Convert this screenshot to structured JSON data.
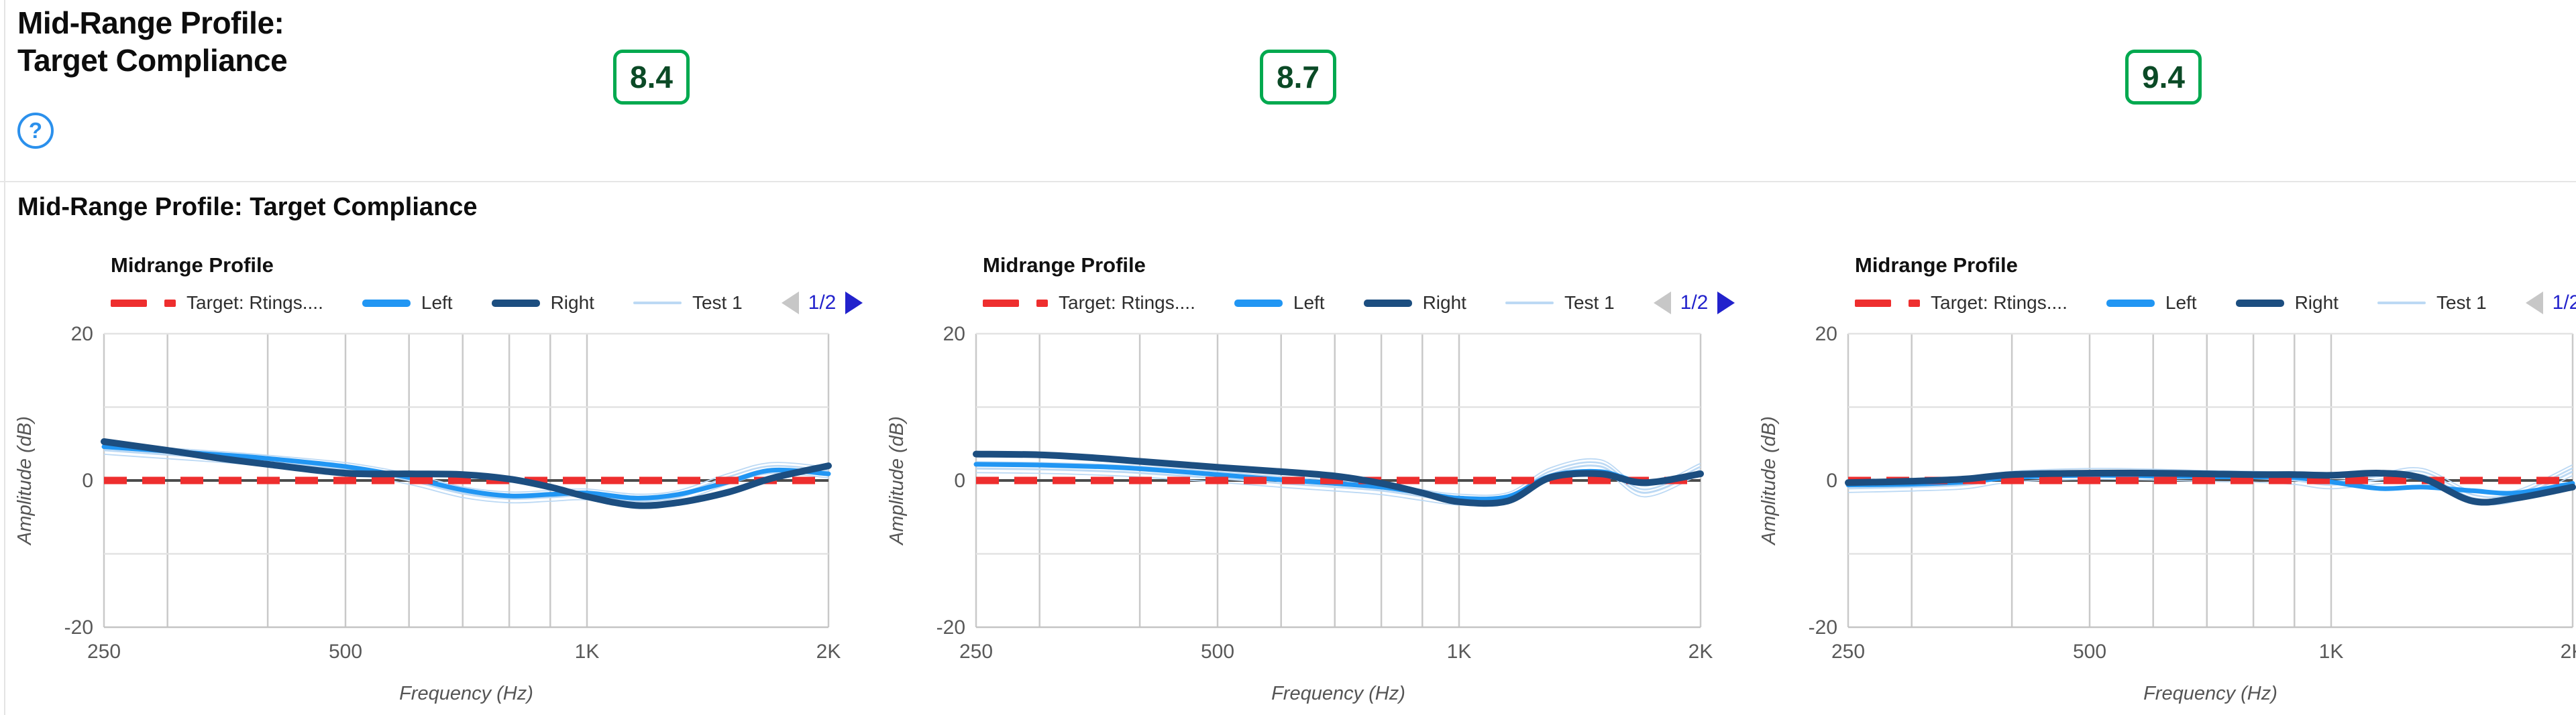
{
  "header": {
    "title_line1": "Mid-Range Profile:",
    "title_line2": "Target Compliance",
    "help_label": "?"
  },
  "scores": [
    "8.4",
    "8.7",
    "9.4"
  ],
  "section_title": "Mid-Range Profile: Target Compliance",
  "colors": {
    "target": "#ee2e2e",
    "left": "#2196f3",
    "right": "#1c4e80",
    "test1": "#bcd9f4",
    "zero_line": "#4c4c4c",
    "score_border": "#00a94f",
    "score_text": "#0b4a26",
    "pagination_active": "#2222cc",
    "pagination_disabled": "#c7c7c7",
    "help_icon": "#2b90ec",
    "grid_vertical": "#c9c9c9",
    "grid_horizontal": "#e3e3e3"
  },
  "charts_common": {
    "title": "Midrange Profile",
    "legend": {
      "target_label": "Target: Rtings....",
      "left_label": "Left",
      "right_label": "Right",
      "test1_label": "Test 1"
    },
    "pagination": {
      "label": "1/2"
    },
    "xlabel": "Frequency (Hz)",
    "ylabel": "Amplitude (dB)",
    "xlim": [
      250,
      2000
    ],
    "ylim": [
      -20,
      20
    ],
    "xscale": "log",
    "xgrid": [
      250,
      300,
      400,
      500,
      600,
      700,
      800,
      900,
      1000,
      2000
    ],
    "ygrid": [
      20,
      10,
      -10,
      -20
    ],
    "xticks": [
      {
        "f": 250,
        "label": "250"
      },
      {
        "f": 500,
        "label": "500"
      },
      {
        "f": 1000,
        "label": "1K"
      },
      {
        "f": 2000,
        "label": "2K"
      }
    ],
    "yticks": [
      {
        "v": 20,
        "label": "20"
      },
      {
        "v": 0,
        "label": "0"
      },
      {
        "v": -20,
        "label": "-20"
      }
    ],
    "frequencies": [
      250,
      300,
      350,
      400,
      500,
      600,
      700,
      800,
      900,
      1000,
      1150,
      1300,
      1500,
      1700,
      2000
    ]
  },
  "chart_data": [
    {
      "type": "line",
      "score": "8.4",
      "series": {
        "target_db": 0,
        "right": [
          5.3,
          4.1,
          3.0,
          2.2,
          1.0,
          0.9,
          0.8,
          0.2,
          -0.9,
          -2.2,
          -3.4,
          -3.0,
          -1.6,
          0.3,
          2.0
        ],
        "left": [
          4.6,
          4.0,
          3.5,
          3.0,
          1.9,
          0.4,
          -1.3,
          -2.1,
          -1.9,
          -1.7,
          -2.4,
          -1.9,
          -0.2,
          1.4,
          0.9
        ],
        "test1": [
          4.3,
          3.7,
          3.2,
          2.7,
          1.7,
          0.2,
          -1.6,
          -2.3,
          -2.1,
          -1.9,
          -2.6,
          -2.1,
          0.2,
          1.7,
          1.1
        ]
      }
    },
    {
      "type": "line",
      "score": "8.7",
      "series": {
        "target_db": 0,
        "right": [
          3.6,
          3.5,
          3.1,
          2.6,
          1.8,
          1.2,
          0.6,
          -0.4,
          -1.7,
          -2.9,
          -2.8,
          0.4,
          0.9,
          -0.3,
          0.9
        ],
        "left": [
          2.2,
          2.1,
          1.9,
          1.6,
          0.8,
          0.1,
          -0.4,
          -0.9,
          -1.7,
          -2.4,
          -2.2,
          0.6,
          1.2,
          -0.2,
          0.8
        ],
        "test1": [
          1.8,
          1.7,
          1.5,
          1.2,
          0.5,
          -0.2,
          -0.7,
          -1.2,
          -2.0,
          -2.6,
          -2.4,
          1.0,
          2.1,
          -1.5,
          1.6
        ]
      }
    },
    {
      "type": "line",
      "score": "9.4",
      "series": {
        "target_db": 0,
        "right": [
          -0.3,
          -0.1,
          0.2,
          0.8,
          1.0,
          1.0,
          0.9,
          0.8,
          0.8,
          0.7,
          1.0,
          0.3,
          -2.8,
          -2.4,
          -0.9
        ],
        "left": [
          -0.6,
          -0.5,
          -0.2,
          0.4,
          0.7,
          0.6,
          0.5,
          0.5,
          0.4,
          -0.2,
          -1.1,
          -0.9,
          -1.4,
          -1.7,
          -0.4
        ],
        "test1": [
          -0.9,
          -0.7,
          -0.4,
          0.5,
          0.9,
          0.8,
          0.6,
          0.5,
          0.2,
          -0.4,
          0.3,
          0.9,
          -2.2,
          -2.1,
          1.4
        ]
      }
    }
  ]
}
